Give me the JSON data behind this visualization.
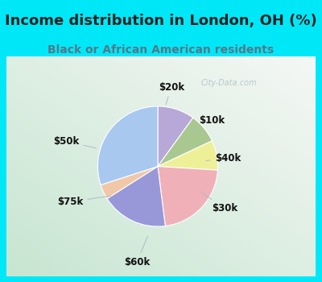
{
  "title": "Income distribution in London, OH (%)",
  "subtitle": "Black or African American residents",
  "slices": [
    {
      "label": "$20k",
      "value": 10,
      "color": "#b8a8d8"
    },
    {
      "label": "$10k",
      "value": 8,
      "color": "#a8c890"
    },
    {
      "label": "$40k",
      "value": 8,
      "color": "#eef098"
    },
    {
      "label": "$30k",
      "value": 22,
      "color": "#f0b0b8"
    },
    {
      "label": "$60k",
      "value": 18,
      "color": "#9898d8"
    },
    {
      "label": "$75k",
      "value": 4,
      "color": "#f0c8a8"
    },
    {
      "label": "$50k",
      "value": 30,
      "color": "#a8c8f0"
    }
  ],
  "background_outer": "#00e8f8",
  "title_color": "#222222",
  "subtitle_color": "#557788",
  "watermark": "City-Data.com",
  "label_font_size": 8.5,
  "title_font_size": 13,
  "subtitle_font_size": 10
}
